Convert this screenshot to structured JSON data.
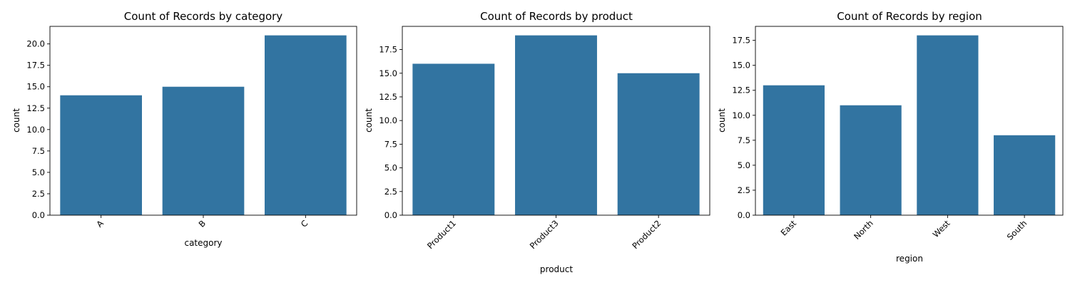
{
  "chart_data": [
    {
      "type": "bar",
      "title": "Count of Records by category",
      "xlabel": "category",
      "ylabel": "count",
      "categories": [
        "A",
        "B",
        "C"
      ],
      "values": [
        14,
        15,
        21
      ],
      "ylim": [
        0,
        22.05
      ],
      "yticks": [
        "0.0",
        "2.5",
        "5.0",
        "7.5",
        "10.0",
        "12.5",
        "15.0",
        "17.5",
        "20.0"
      ],
      "xtick_rotation": 45,
      "color": "#3274a1",
      "grid": false
    },
    {
      "type": "bar",
      "title": "Count of Records by product",
      "xlabel": "product",
      "ylabel": "count",
      "categories": [
        "Product1",
        "Product3",
        "Product2"
      ],
      "values": [
        16,
        19,
        15
      ],
      "ylim": [
        0,
        19.95
      ],
      "yticks": [
        "0.0",
        "2.5",
        "5.0",
        "7.5",
        "10.0",
        "12.5",
        "15.0",
        "17.5"
      ],
      "xtick_rotation": 45,
      "color": "#3274a1",
      "grid": false
    },
    {
      "type": "bar",
      "title": "Count of Records by region",
      "xlabel": "region",
      "ylabel": "count",
      "categories": [
        "East",
        "North",
        "West",
        "South"
      ],
      "values": [
        13,
        11,
        18,
        8
      ],
      "ylim": [
        0,
        18.9
      ],
      "yticks": [
        "0.0",
        "2.5",
        "5.0",
        "7.5",
        "10.0",
        "12.5",
        "15.0",
        "17.5"
      ],
      "xtick_rotation": 45,
      "color": "#3274a1",
      "grid": false
    }
  ]
}
